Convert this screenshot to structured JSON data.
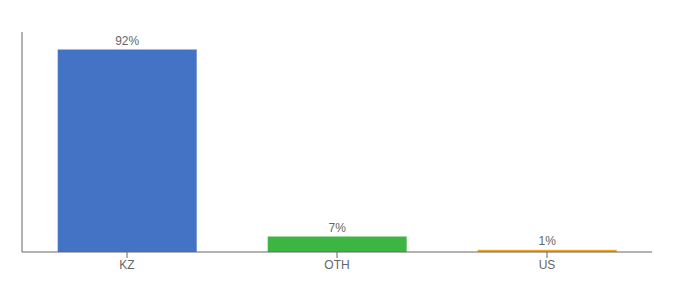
{
  "chart_data": {
    "type": "bar",
    "categories": [
      "KZ",
      "OTH",
      "US"
    ],
    "values": [
      92,
      7,
      1
    ],
    "value_labels": [
      "92%",
      "7%",
      "1%"
    ],
    "colors": [
      "#4472c4",
      "#3cb543",
      "#f5a623"
    ],
    "data_labels": true,
    "ylim": [
      0,
      100
    ],
    "tick_labels": "x",
    "grid": false
  }
}
